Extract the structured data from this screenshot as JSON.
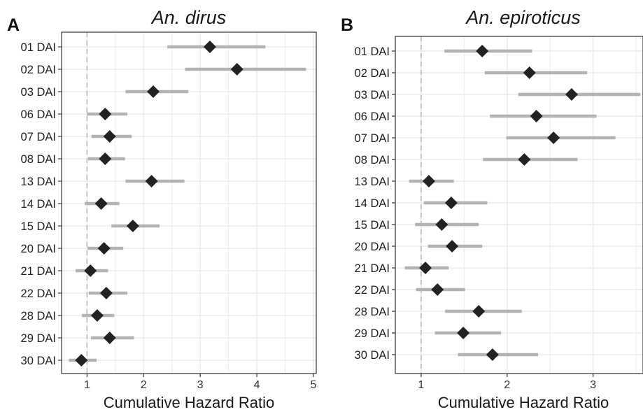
{
  "chart_data": [
    {
      "type": "forest",
      "panel_label": "A",
      "title": "An. dirus",
      "xlabel": "Cumulative Hazard Ratio",
      "xlim": [
        0.55,
        5.05
      ],
      "xticks": [
        1,
        2,
        3,
        4,
        5
      ],
      "reference_line": 1,
      "categories": [
        "01 DAI",
        "02 DAI",
        "03 DAI",
        "06 DAI",
        "07 DAI",
        "08 DAI",
        "13 DAI",
        "14 DAI",
        "15 DAI",
        "20 DAI",
        "21 DAI",
        "22 DAI",
        "28 DAI",
        "29 DAI",
        "30 DAI"
      ],
      "estimate": [
        3.17,
        3.65,
        2.17,
        1.32,
        1.4,
        1.32,
        2.14,
        1.25,
        1.81,
        1.3,
        1.06,
        1.34,
        1.18,
        1.4,
        0.9
      ],
      "ci_low": [
        2.42,
        2.73,
        1.68,
        1.0,
        1.08,
        1.02,
        1.68,
        0.96,
        1.43,
        1.01,
        0.8,
        1.03,
        0.91,
        1.07,
        0.68
      ],
      "ci_high": [
        4.15,
        4.87,
        2.79,
        1.71,
        1.79,
        1.67,
        2.72,
        1.57,
        2.28,
        1.64,
        1.37,
        1.71,
        1.48,
        1.83,
        1.17
      ],
      "colors": {
        "point": "#222222",
        "ci": "#b3b3b3",
        "ref": "#bdbdbd",
        "grid": "#ebebeb",
        "border": "#333333"
      },
      "grid": true
    },
    {
      "type": "forest",
      "panel_label": "B",
      "title": "An. epiroticus",
      "xlabel": "Cumulative Hazard Ratio",
      "xlim": [
        0.7,
        3.58
      ],
      "xticks": [
        1,
        2,
        3
      ],
      "reference_line": 1,
      "categories": [
        "01 DAI",
        "02 DAI",
        "03 DAI",
        "06 DAI",
        "07 DAI",
        "08 DAI",
        "13 DAI",
        "14 DAI",
        "15 DAI",
        "20 DAI",
        "21 DAI",
        "22 DAI",
        "28 DAI",
        "29 DAI",
        "30 DAI"
      ],
      "estimate": [
        1.71,
        2.26,
        2.75,
        2.34,
        2.54,
        2.2,
        1.09,
        1.35,
        1.24,
        1.36,
        1.05,
        1.19,
        1.67,
        1.49,
        1.83
      ],
      "ci_low": [
        1.27,
        1.74,
        2.13,
        1.8,
        1.99,
        1.72,
        0.86,
        1.03,
        0.93,
        1.08,
        0.81,
        0.94,
        1.28,
        1.16,
        1.43
      ],
      "ci_high": [
        2.29,
        2.93,
        3.55,
        3.04,
        3.26,
        2.82,
        1.38,
        1.77,
        1.67,
        1.71,
        1.32,
        1.51,
        2.17,
        1.93,
        2.36
      ],
      "colors": {
        "point": "#222222",
        "ci": "#b3b3b3",
        "ref": "#bdbdbd",
        "grid": "#ebebeb",
        "border": "#333333"
      },
      "grid": true
    }
  ]
}
